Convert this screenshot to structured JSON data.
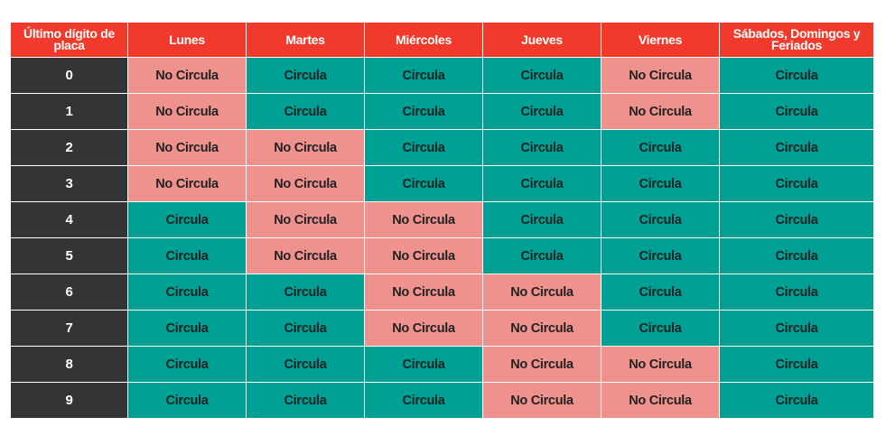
{
  "table": {
    "headers": [
      "Último dígito de placa",
      "Lunes",
      "Martes",
      "Miércoles",
      "Jueves",
      "Viernes",
      "Sábados, Domingos y Feriados"
    ],
    "rows": [
      {
        "digit": "0",
        "cells": [
          "No Circula",
          "Circula",
          "Circula",
          "Circula",
          "No Circula",
          "Circula"
        ]
      },
      {
        "digit": "1",
        "cells": [
          "No Circula",
          "Circula",
          "Circula",
          "Circula",
          "No Circula",
          "Circula"
        ]
      },
      {
        "digit": "2",
        "cells": [
          "No Circula",
          "No Circula",
          "Circula",
          "Circula",
          "Circula",
          "Circula"
        ]
      },
      {
        "digit": "3",
        "cells": [
          "No Circula",
          "No Circula",
          "Circula",
          "Circula",
          "Circula",
          "Circula"
        ]
      },
      {
        "digit": "4",
        "cells": [
          "Circula",
          "No Circula",
          "No Circula",
          "Circula",
          "Circula",
          "Circula"
        ]
      },
      {
        "digit": "5",
        "cells": [
          "Circula",
          "No Circula",
          "No Circula",
          "Circula",
          "Circula",
          "Circula"
        ]
      },
      {
        "digit": "6",
        "cells": [
          "Circula",
          "Circula",
          "No Circula",
          "No Circula",
          "Circula",
          "Circula"
        ]
      },
      {
        "digit": "7",
        "cells": [
          "Circula",
          "Circula",
          "No Circula",
          "No Circula",
          "Circula",
          "Circula"
        ]
      },
      {
        "digit": "8",
        "cells": [
          "Circula",
          "Circula",
          "Circula",
          "No Circula",
          "No Circula",
          "Circula"
        ]
      },
      {
        "digit": "9",
        "cells": [
          "Circula",
          "Circula",
          "Circula",
          "No Circula",
          "No Circula",
          "Circula"
        ]
      }
    ]
  },
  "colors": {
    "header_red": "#f23a2c",
    "row_header_dark": "#333436",
    "circula_teal": "#00a094",
    "no_circula_pink": "#ef918d"
  }
}
